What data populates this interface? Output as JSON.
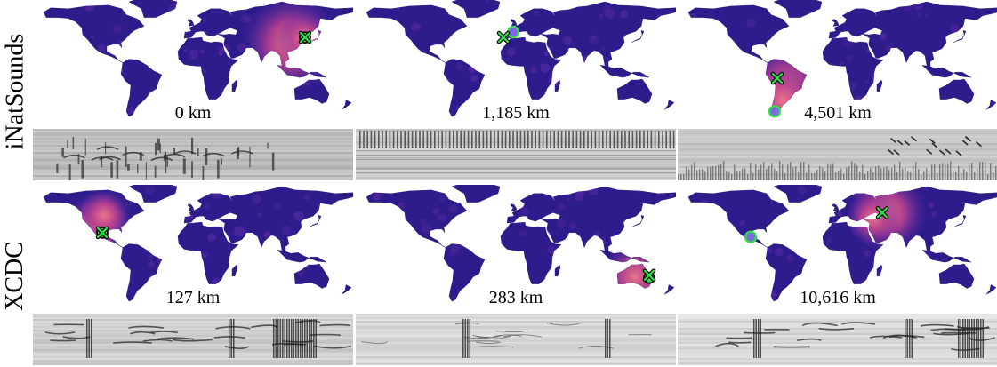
{
  "rows": [
    {
      "label": "iNatSounds",
      "panels": [
        {
          "distance": "0 km",
          "hotspot": "east-asia",
          "true_loc": {
            "lon": 126,
            "lat": 37
          },
          "pred_loc": {
            "lon": 126,
            "lat": 37
          },
          "spectrogram_style": "dark-clustered"
        },
        {
          "distance": "1,185 km",
          "hotspot": "none",
          "true_loc": {
            "lon": -3,
            "lat": 43
          },
          "pred_loc": {
            "lon": -14,
            "lat": 37
          },
          "spectrogram_style": "striped"
        },
        {
          "distance": "4,501 km",
          "hotspot": "south-america",
          "true_loc": {
            "lon": -71,
            "lat": -48
          },
          "pred_loc": {
            "lon": -68,
            "lat": -10
          },
          "spectrogram_style": "sparse-chirps"
        }
      ]
    },
    {
      "label": "XCDC",
      "panels": [
        {
          "distance": "127 km",
          "hotspot": "north-america",
          "true_loc": {
            "lon": -102,
            "lat": 25
          },
          "pred_loc": {
            "lon": -102,
            "lat": 25
          },
          "spectrogram_style": "busy-song"
        },
        {
          "distance": "283 km",
          "hotspot": "australia",
          "true_loc": {
            "lon": 150,
            "lat": -27
          },
          "pred_loc": {
            "lon": 150,
            "lat": -24
          },
          "spectrogram_style": "faint-song"
        },
        {
          "distance": "10,616 km",
          "hotspot": "eurasia",
          "true_loc": {
            "lon": -98,
            "lat": 20
          },
          "pred_loc": {
            "lon": 50,
            "lat": 48
          },
          "spectrogram_style": "burst-song"
        }
      ]
    }
  ],
  "colors": {
    "land_base": "#2f1c8c",
    "land_mid": "#5d2aa8",
    "hot_mid": "#b8418f",
    "hot_peak": "#e8758a",
    "marker_fill": "#2ee04a",
    "marker_stroke": "#0a0a0a",
    "pred_marker_fill": "#7a6be0"
  },
  "marker_legend_icons": [
    "circle-marker-icon",
    "x-marker-icon"
  ]
}
